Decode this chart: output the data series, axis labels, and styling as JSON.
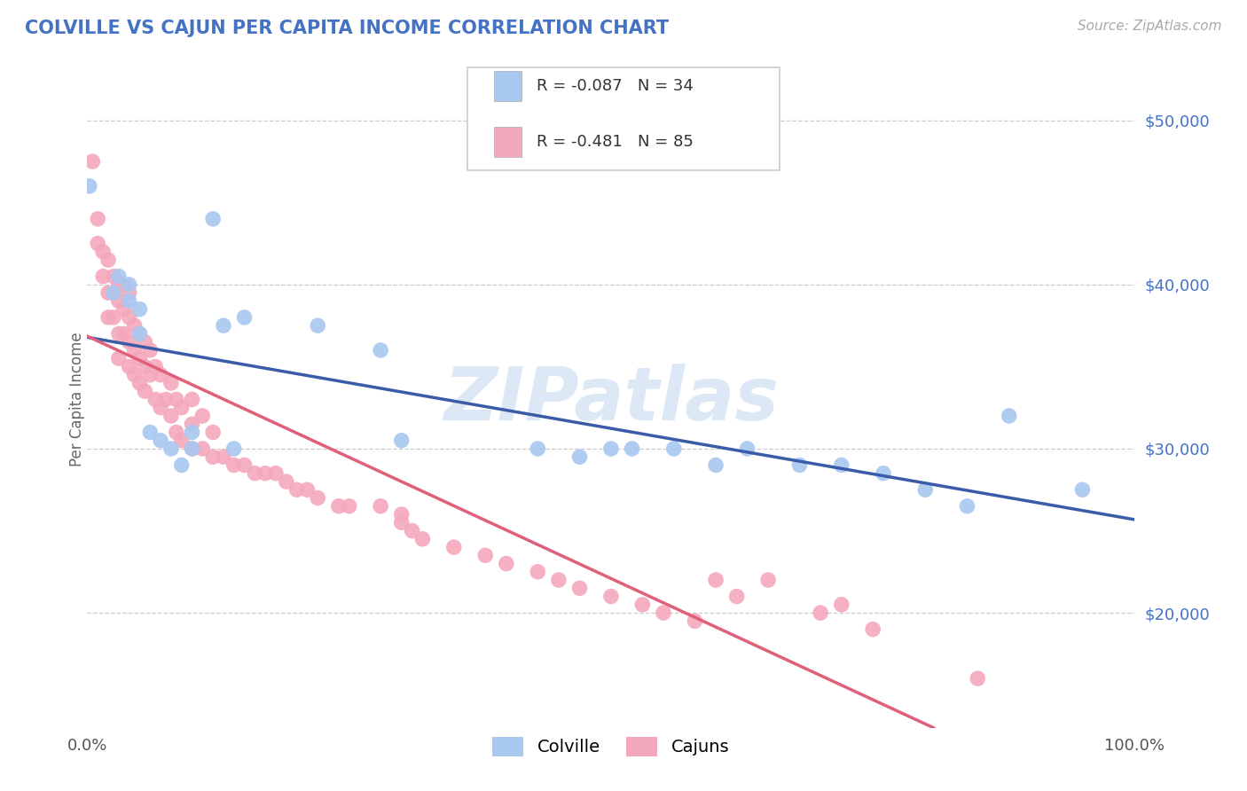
{
  "title": "COLVILLE VS CAJUN PER CAPITA INCOME CORRELATION CHART",
  "source": "Source: ZipAtlas.com",
  "ylabel": "Per Capita Income",
  "yticks": [
    20000,
    30000,
    40000,
    50000
  ],
  "ytick_labels": [
    "$20,000",
    "$30,000",
    "$40,000",
    "$50,000"
  ],
  "legend_labels": [
    "Colville",
    "Cajuns"
  ],
  "colville_R": "-0.087",
  "colville_N": "34",
  "cajun_R": "-0.481",
  "cajun_N": "85",
  "colville_color": "#a8c8f0",
  "cajun_color": "#f4a8bc",
  "colville_line_color": "#3a5ca8",
  "cajun_line_color": "#e0607a",
  "background_color": "#ffffff",
  "watermark_text": "ZIPatlas",
  "colville_x": [
    0.002,
    0.025,
    0.03,
    0.04,
    0.04,
    0.05,
    0.05,
    0.06,
    0.07,
    0.08,
    0.09,
    0.1,
    0.1,
    0.12,
    0.13,
    0.14,
    0.15,
    0.22,
    0.28,
    0.3,
    0.43,
    0.47,
    0.5,
    0.52,
    0.56,
    0.6,
    0.63,
    0.68,
    0.72,
    0.76,
    0.8,
    0.84,
    0.88,
    0.95
  ],
  "colville_y": [
    46000,
    39500,
    40500,
    39000,
    40000,
    38500,
    37000,
    31000,
    30500,
    30000,
    29000,
    30000,
    31000,
    44000,
    37500,
    30000,
    38000,
    37500,
    36000,
    30500,
    30000,
    29500,
    30000,
    30000,
    30000,
    29000,
    30000,
    29000,
    29000,
    28500,
    27500,
    26500,
    32000,
    27500
  ],
  "cajun_x": [
    0.005,
    0.01,
    0.01,
    0.015,
    0.015,
    0.02,
    0.02,
    0.02,
    0.025,
    0.025,
    0.025,
    0.03,
    0.03,
    0.03,
    0.03,
    0.035,
    0.035,
    0.035,
    0.04,
    0.04,
    0.04,
    0.04,
    0.045,
    0.045,
    0.045,
    0.05,
    0.05,
    0.05,
    0.055,
    0.055,
    0.055,
    0.06,
    0.06,
    0.065,
    0.065,
    0.07,
    0.07,
    0.075,
    0.08,
    0.08,
    0.085,
    0.085,
    0.09,
    0.09,
    0.1,
    0.1,
    0.1,
    0.11,
    0.11,
    0.12,
    0.12,
    0.13,
    0.14,
    0.15,
    0.16,
    0.17,
    0.18,
    0.19,
    0.2,
    0.21,
    0.22,
    0.24,
    0.25,
    0.28,
    0.3,
    0.3,
    0.31,
    0.32,
    0.35,
    0.38,
    0.4,
    0.43,
    0.45,
    0.47,
    0.5,
    0.53,
    0.55,
    0.58,
    0.6,
    0.62,
    0.65,
    0.7,
    0.72,
    0.75,
    0.85
  ],
  "cajun_y": [
    47500,
    44000,
    42500,
    42000,
    40500,
    41500,
    39500,
    38000,
    40500,
    39500,
    38000,
    40000,
    39000,
    37000,
    35500,
    40000,
    38500,
    37000,
    39500,
    38000,
    36500,
    35000,
    37500,
    36000,
    34500,
    37000,
    35500,
    34000,
    36500,
    35000,
    33500,
    36000,
    34500,
    35000,
    33000,
    34500,
    32500,
    33000,
    34000,
    32000,
    33000,
    31000,
    32500,
    30500,
    33000,
    31500,
    30000,
    32000,
    30000,
    31000,
    29500,
    29500,
    29000,
    29000,
    28500,
    28500,
    28500,
    28000,
    27500,
    27500,
    27000,
    26500,
    26500,
    26500,
    26000,
    25500,
    25000,
    24500,
    24000,
    23500,
    23000,
    22500,
    22000,
    21500,
    21000,
    20500,
    20000,
    19500,
    22000,
    21000,
    22000,
    20000,
    20500,
    19000,
    16000
  ],
  "xlim": [
    0.0,
    1.0
  ],
  "ylim": [
    13000,
    53000
  ]
}
